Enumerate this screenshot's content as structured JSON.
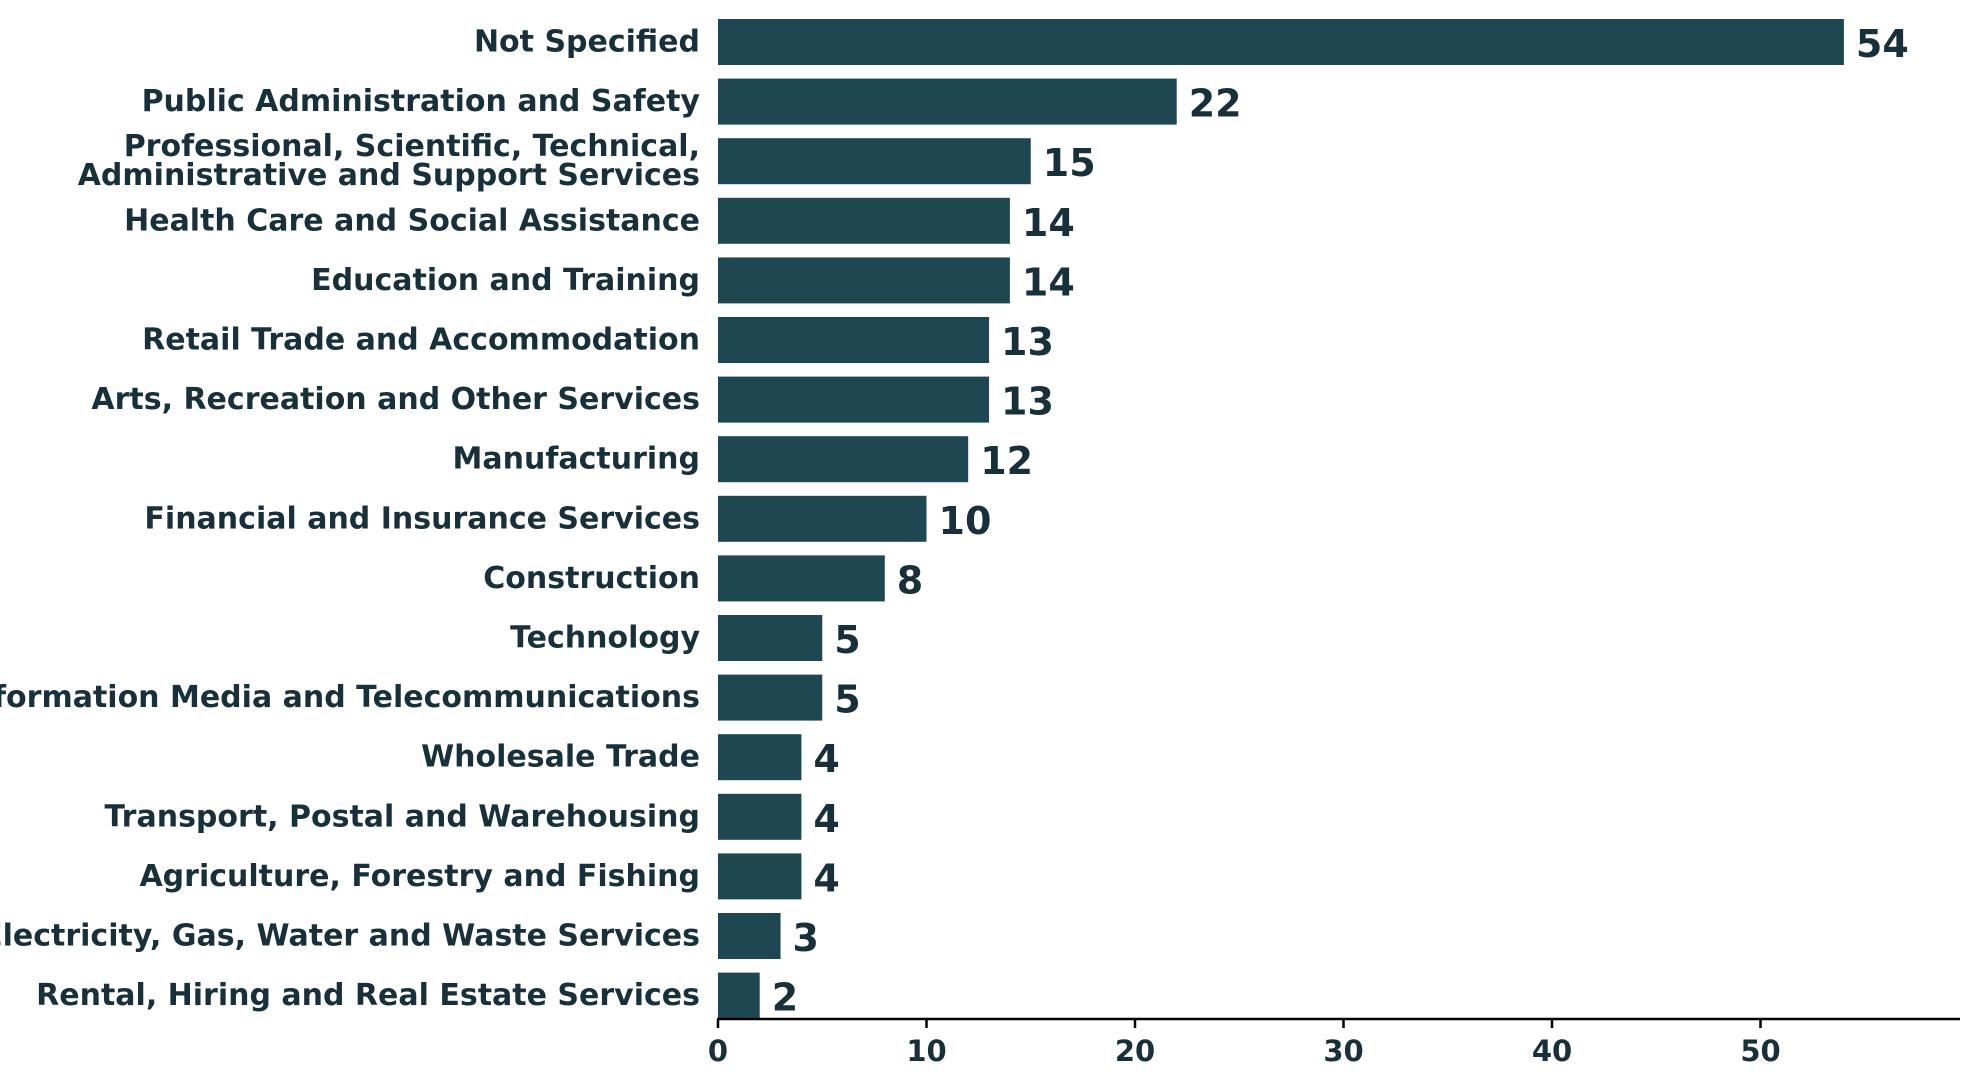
{
  "chart_data": {
    "type": "bar",
    "orientation": "horizontal",
    "title": "",
    "xlabel": "",
    "ylabel": "",
    "categories": [
      [
        "Not Specified"
      ],
      [
        "Public Administration and Safety"
      ],
      [
        "Professional, Scientific, Technical,",
        "Administrative and Support Services"
      ],
      [
        "Health Care and Social Assistance"
      ],
      [
        "Education and Training"
      ],
      [
        "Retail Trade and Accommodation"
      ],
      [
        "Arts, Recreation and Other Services"
      ],
      [
        "Manufacturing"
      ],
      [
        "Financial and Insurance Services"
      ],
      [
        "Construction"
      ],
      [
        "Technology"
      ],
      [
        "Information Media and Telecommunications"
      ],
      [
        "Wholesale Trade"
      ],
      [
        "Transport, Postal and Warehousing"
      ],
      [
        "Agriculture, Forestry and Fishing"
      ],
      [
        "Electricity, Gas, Water and Waste Services"
      ],
      [
        "Rental, Hiring and Real Estate Services"
      ]
    ],
    "values": [
      54,
      22,
      15,
      14,
      14,
      13,
      13,
      12,
      10,
      8,
      5,
      5,
      4,
      4,
      4,
      3,
      2
    ],
    "xlim": [
      0,
      59
    ],
    "xticks": [
      0,
      10,
      20,
      30,
      40,
      50
    ],
    "grid": false,
    "legend": "none",
    "bar_color": "#1f4751",
    "text_color": "#17303a"
  }
}
